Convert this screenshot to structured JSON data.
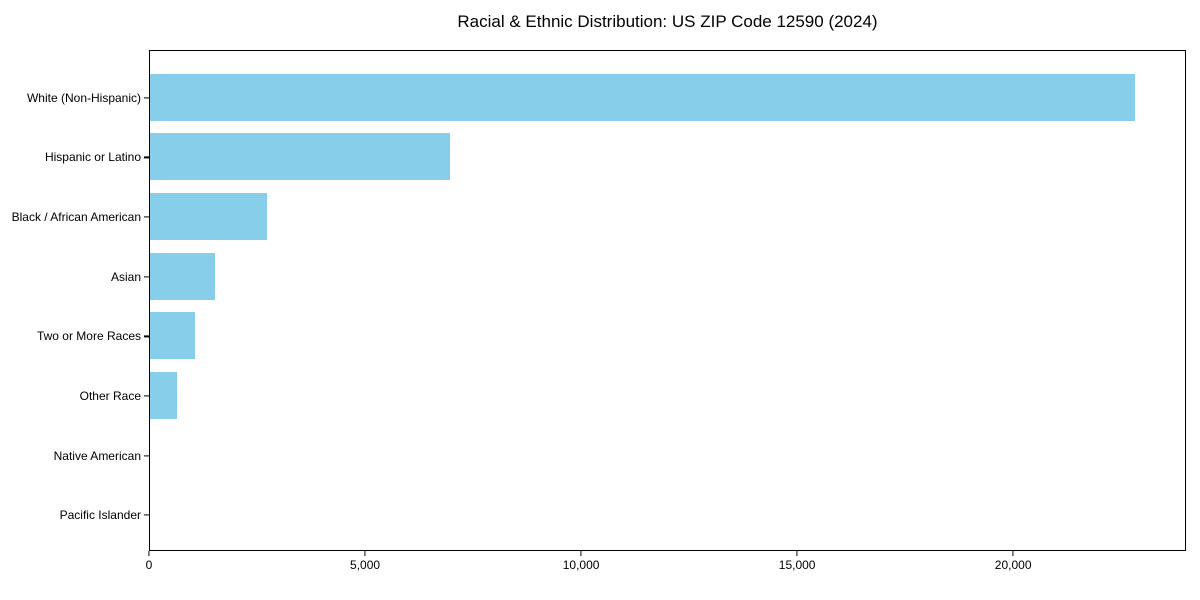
{
  "figure": {
    "background": "#ffffff"
  },
  "chart_data": {
    "type": "bar",
    "orientation": "horizontal",
    "title": "Racial & Ethnic Distribution: US ZIP Code 12590 (2024)",
    "categories": [
      "White (Non-Hispanic)",
      "Hispanic or Latino",
      "Black / African American",
      "Asian",
      "Two or More Races",
      "Other Race",
      "Native American",
      "Pacific Islander"
    ],
    "values": [
      22850,
      6950,
      2710,
      1510,
      1050,
      630,
      0,
      0
    ],
    "xlabel": "",
    "ylabel": "",
    "xlim": [
      0,
      24000
    ],
    "xticks": [
      0,
      5000,
      10000,
      15000,
      20000
    ],
    "xtick_labels": [
      "0",
      "5,000",
      "10,000",
      "15,000",
      "20,000"
    ],
    "bar_color": "#87CEEB",
    "axis_color": "#000000",
    "grid": false,
    "legend": null
  }
}
